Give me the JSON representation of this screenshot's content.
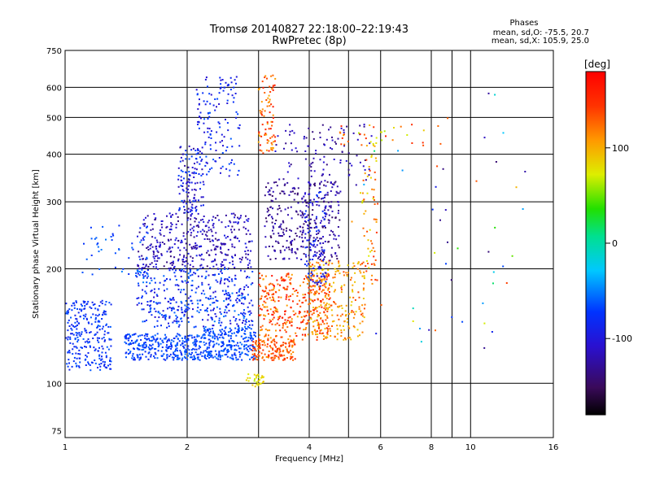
{
  "chart_data": {
    "type": "scatter",
    "title": "Tromsø 20140827 22:18:00–22:19:43",
    "subtitle": "RwPretec (8p)",
    "xlabel": "Frequency [MHz]",
    "ylabel": "Stationary phase Virtual Height [km]",
    "x_scale": "log",
    "y_scale": "log",
    "xlim": [
      1,
      16
    ],
    "ylim": [
      72,
      750
    ],
    "x_ticks": [
      1,
      2,
      4,
      6,
      8,
      10,
      16
    ],
    "x_tick_labels": [
      "1",
      "2",
      "4",
      "6",
      "8",
      "10",
      "16"
    ],
    "x_grid": [
      1,
      2,
      3,
      4,
      5,
      6,
      8,
      9,
      10,
      16
    ],
    "y_ticks": [
      75,
      100,
      200,
      300,
      400,
      500,
      600,
      750
    ],
    "y_tick_labels": [
      "75",
      "100",
      "200",
      "300",
      "400",
      "500",
      "600",
      "750"
    ],
    "y_grid": [
      100,
      200,
      300,
      400,
      500,
      600
    ],
    "grid": true,
    "stats": {
      "heading": "Phases",
      "o_line": "mean, sd,O: -75.5, 20.7",
      "x_line": "mean, sd,X: 105.9, 25.0"
    },
    "colorbar": {
      "unit": "[deg]",
      "min": -180,
      "max": 180,
      "tick_values": [
        100,
        0,
        -100
      ],
      "tick_labels": [
        "100",
        "0",
        "-100"
      ]
    },
    "clusters": [
      {
        "f": [
          1.0,
          1.3
        ],
        "h": [
          108,
          165
        ],
        "phase": [
          -90,
          -60
        ],
        "n": 260
      },
      {
        "f": [
          1.4,
          2.2
        ],
        "h": [
          115,
          135
        ],
        "phase": [
          -85,
          -55
        ],
        "n": 320
      },
      {
        "f": [
          2.2,
          2.95
        ],
        "h": [
          115,
          140
        ],
        "phase": [
          -80,
          -55
        ],
        "n": 260
      },
      {
        "f": [
          1.5,
          2.9
        ],
        "h": [
          140,
          200
        ],
        "phase": [
          -110,
          -50
        ],
        "n": 420
      },
      {
        "f": [
          1.5,
          2.9
        ],
        "h": [
          200,
          280
        ],
        "phase": [
          -140,
          -90
        ],
        "n": 380
      },
      {
        "f": [
          1.9,
          2.2
        ],
        "h": [
          280,
          420
        ],
        "phase": [
          -130,
          -60
        ],
        "n": 120
      },
      {
        "f": [
          2.1,
          2.7
        ],
        "h": [
          350,
          640
        ],
        "phase": [
          -110,
          -60
        ],
        "n": 140
      },
      {
        "f": [
          1.1,
          1.6
        ],
        "h": [
          190,
          260
        ],
        "phase": [
          -80,
          -50
        ],
        "n": 50
      },
      {
        "f": [
          2.9,
          3.7
        ],
        "h": [
          115,
          130
        ],
        "phase": [
          110,
          160
        ],
        "n": 150
      },
      {
        "f": [
          3.0,
          4.5
        ],
        "h": [
          130,
          195
        ],
        "phase": [
          100,
          170
        ],
        "n": 360
      },
      {
        "f": [
          4.0,
          5.5
        ],
        "h": [
          130,
          210
        ],
        "phase": [
          80,
          140
        ],
        "n": 240
      },
      {
        "f": [
          3.0,
          3.3
        ],
        "h": [
          400,
          650
        ],
        "phase": [
          100,
          170
        ],
        "n": 80
      },
      {
        "f": [
          3.1,
          4.8
        ],
        "h": [
          210,
          340
        ],
        "phase": [
          -150,
          -110
        ],
        "n": 300
      },
      {
        "f": [
          3.9,
          4.4
        ],
        "h": [
          180,
          320
        ],
        "phase": [
          -120,
          -70
        ],
        "n": 120
      },
      {
        "f": [
          3.3,
          5.8
        ],
        "h": [
          330,
          480
        ],
        "phase": [
          -140,
          -100
        ],
        "n": 110
      },
      {
        "f": [
          5.4,
          5.9
        ],
        "h": [
          180,
          500
        ],
        "phase": [
          70,
          150
        ],
        "n": 70
      },
      {
        "f": [
          2.8,
          3.1
        ],
        "h": [
          98,
          106
        ],
        "phase": [
          60,
          90
        ],
        "n": 30
      },
      {
        "f": [
          4.5,
          8.5
        ],
        "h": [
          420,
          480
        ],
        "phase": [
          60,
          160
        ],
        "n": 30
      },
      {
        "f": [
          5.0,
          14.0
        ],
        "h": [
          120,
          600
        ],
        "phase": [
          -150,
          150
        ],
        "n": 50
      }
    ]
  }
}
